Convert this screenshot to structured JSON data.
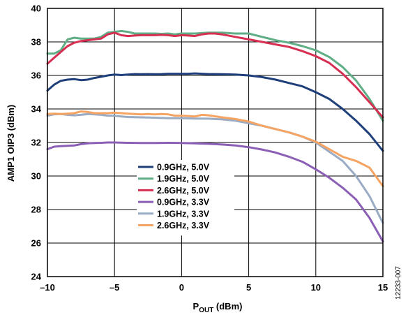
{
  "chart_data": {
    "type": "line",
    "title": "",
    "xlabel": {
      "main": "P",
      "sub": "OUT",
      "unit": " (dBm)"
    },
    "ylabel": "AMP1 OIP3 (dBm)",
    "xlim": [
      -10,
      15
    ],
    "ylim": [
      24,
      40
    ],
    "xticks": [
      -10,
      -5,
      0,
      5,
      10,
      15
    ],
    "xtick_labels": [
      "–10",
      "–5",
      "0",
      "5",
      "10",
      "15"
    ],
    "yticks": [
      24,
      26,
      28,
      30,
      32,
      34,
      36,
      38,
      40
    ],
    "ytick_labels": [
      "24",
      "26",
      "28",
      "30",
      "32",
      "34",
      "36",
      "38",
      "40"
    ],
    "grid": true,
    "legend_position": "lower-left-center",
    "figure_id": "12233-007",
    "series": [
      {
        "name": "0.9GHz, 5.0V",
        "color": "#1f3f7a",
        "x": [
          -10,
          -9.5,
          -9,
          -8.5,
          -8,
          -7.5,
          -7,
          -6.5,
          -6,
          -5.5,
          -5,
          -4.5,
          -4,
          -3.5,
          -3,
          -2.5,
          -2,
          -1.5,
          -1,
          -0.5,
          0,
          0.5,
          1,
          1.5,
          2,
          2.5,
          3,
          4,
          5,
          6,
          7,
          8,
          9,
          10,
          11,
          12,
          13,
          14,
          15
        ],
        "y": [
          35.1,
          35.45,
          35.68,
          35.75,
          35.78,
          35.72,
          35.75,
          35.85,
          35.92,
          36.0,
          36.05,
          36.02,
          36.05,
          36.08,
          36.07,
          36.08,
          36.07,
          36.08,
          36.1,
          36.1,
          36.1,
          36.1,
          36.12,
          36.1,
          36.08,
          36.08,
          36.07,
          36.05,
          36.0,
          35.9,
          35.75,
          35.55,
          35.35,
          35.0,
          34.6,
          34.0,
          33.3,
          32.5,
          31.5
        ]
      },
      {
        "name": "1.9GHz, 5.0V",
        "color": "#5fae85",
        "x": [
          -10,
          -9.5,
          -9,
          -8.5,
          -8,
          -7.5,
          -7,
          -6.5,
          -6,
          -5.5,
          -5,
          -4.5,
          -4,
          -3.5,
          -3,
          -2.5,
          -2,
          -1.5,
          -1,
          -0.5,
          0,
          1,
          2,
          3,
          4,
          5,
          6,
          7,
          8,
          9,
          10,
          11,
          12,
          13,
          14,
          15
        ],
        "y": [
          37.3,
          37.3,
          37.5,
          38.15,
          38.25,
          38.2,
          38.2,
          38.2,
          38.3,
          38.55,
          38.6,
          38.65,
          38.6,
          38.5,
          38.5,
          38.5,
          38.5,
          38.48,
          38.5,
          38.45,
          38.5,
          38.5,
          38.55,
          38.55,
          38.5,
          38.5,
          38.3,
          38.1,
          37.95,
          37.75,
          37.5,
          37.1,
          36.5,
          35.7,
          34.6,
          33.3
        ]
      },
      {
        "name": "2.6GHz, 5.0V",
        "color": "#d62f52",
        "x": [
          -10,
          -9.5,
          -9,
          -8.5,
          -8,
          -7.5,
          -7,
          -6.5,
          -6,
          -5.5,
          -5,
          -4.5,
          -4,
          -3.5,
          -3,
          -2.5,
          -2,
          -1.5,
          -1,
          -0.5,
          0,
          0.5,
          1,
          1.5,
          2,
          2.5,
          3,
          4,
          5,
          6,
          7,
          8,
          9,
          10,
          11,
          12,
          13,
          14,
          15
        ],
        "y": [
          36.7,
          37.05,
          37.4,
          37.75,
          37.95,
          38.05,
          38.1,
          38.15,
          38.2,
          38.45,
          38.55,
          38.4,
          38.35,
          38.38,
          38.4,
          38.4,
          38.4,
          38.42,
          38.4,
          38.35,
          38.4,
          38.38,
          38.35,
          38.45,
          38.5,
          38.5,
          38.45,
          38.3,
          38.15,
          38.0,
          37.85,
          37.7,
          37.45,
          37.15,
          36.75,
          36.1,
          35.3,
          34.4,
          33.5
        ]
      },
      {
        "name": "0.9GHz, 3.3V",
        "color": "#8b5fb5",
        "x": [
          -10,
          -9.5,
          -9,
          -8.5,
          -8,
          -7.5,
          -7,
          -6.5,
          -6,
          -5.5,
          -5,
          -4,
          -3,
          -2,
          -1,
          0,
          1,
          2,
          3,
          4,
          5,
          6,
          7,
          8,
          9,
          10,
          11,
          12,
          13,
          14,
          15
        ],
        "y": [
          31.6,
          31.75,
          31.78,
          31.8,
          31.82,
          31.9,
          31.95,
          31.97,
          31.98,
          32.0,
          32.0,
          31.98,
          31.97,
          31.97,
          31.98,
          31.97,
          31.95,
          31.92,
          31.88,
          31.82,
          31.72,
          31.58,
          31.4,
          31.15,
          30.85,
          30.4,
          29.9,
          29.3,
          28.6,
          27.5,
          26.1
        ]
      },
      {
        "name": "1.9GHz, 3.3V",
        "color": "#9aabc4",
        "x": [
          -10,
          -9.5,
          -9,
          -8.5,
          -8,
          -7.5,
          -7,
          -6.5,
          -6,
          -5.5,
          -5,
          -4.5,
          -4,
          -3,
          -2,
          -1,
          0,
          1,
          2,
          3,
          4,
          5,
          6,
          7,
          8,
          9,
          10,
          11,
          12,
          13,
          14,
          15
        ],
        "y": [
          33.6,
          33.68,
          33.7,
          33.65,
          33.62,
          33.65,
          33.7,
          33.68,
          33.65,
          33.6,
          33.6,
          33.55,
          33.52,
          33.5,
          33.48,
          33.45,
          33.45,
          33.43,
          33.42,
          33.38,
          33.3,
          33.15,
          33.0,
          32.8,
          32.6,
          32.35,
          32.0,
          31.45,
          30.9,
          30.0,
          28.8,
          27.2
        ]
      },
      {
        "name": "2.6GHz, 3.3V",
        "color": "#f5a463",
        "x": [
          -10,
          -9.5,
          -9,
          -8.5,
          -8,
          -7.5,
          -7,
          -6.5,
          -6,
          -5.5,
          -5,
          -4.5,
          -4,
          -3.5,
          -3,
          -2.5,
          -2,
          -1.5,
          -1,
          -0.5,
          0,
          0.5,
          1,
          1.5,
          2,
          3,
          4,
          5,
          6,
          7,
          8,
          9,
          10,
          11,
          12,
          13,
          14,
          15
        ],
        "y": [
          33.7,
          33.72,
          33.7,
          33.72,
          33.75,
          33.85,
          33.82,
          33.75,
          33.75,
          33.75,
          33.78,
          33.75,
          33.72,
          33.7,
          33.68,
          33.7,
          33.68,
          33.7,
          33.68,
          33.6,
          33.6,
          33.58,
          33.55,
          33.65,
          33.62,
          33.5,
          33.4,
          33.25,
          33.0,
          32.8,
          32.6,
          32.35,
          32.05,
          31.6,
          31.15,
          30.9,
          30.5,
          29.4
        ]
      }
    ]
  }
}
